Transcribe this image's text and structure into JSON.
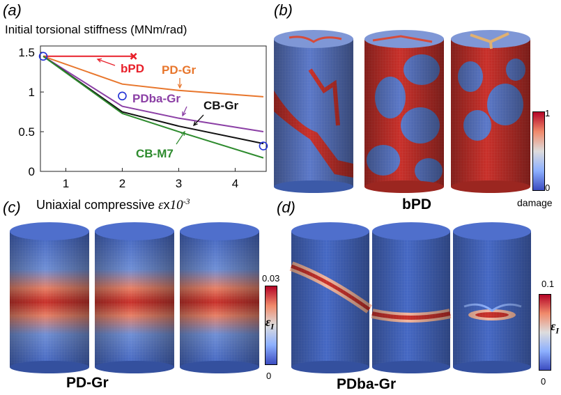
{
  "panels": {
    "a": {
      "label": "(a)"
    },
    "b": {
      "label": "(b)",
      "caption": "bPD",
      "colorbar": {
        "max": "1",
        "min": "0",
        "title": "damage"
      }
    },
    "c": {
      "label": "(c)",
      "caption": "PD-Gr",
      "colorbar": {
        "max": "0.03",
        "min": "0",
        "title": "ε",
        "subscript": "I"
      }
    },
    "d": {
      "label": "(d)",
      "caption": "PDba-Gr",
      "colorbar": {
        "max": "0.1",
        "min": "0",
        "title": "ε",
        "subscript": "I"
      }
    }
  },
  "chart_data": {
    "type": "line",
    "ylabel": "Initial torsional stiffness (MNm/rad)",
    "xlabel": "Uniaxial compressive ",
    "xlabel_symbol": "ε",
    "xlabel_suffix": "x",
    "xlabel_exp": "10",
    "xlabel_exp_power": "-3",
    "xlim": [
      0.55,
      4.55
    ],
    "ylim": [
      0,
      1.58
    ],
    "xticks": [
      "1",
      "2",
      "3",
      "4"
    ],
    "yticks": [
      "0",
      "0.5",
      "1",
      "1.5"
    ],
    "xtick_values": [
      1,
      2,
      3,
      4
    ],
    "ytick_values": [
      0,
      0.5,
      1,
      1.5
    ],
    "series": [
      {
        "name": "bPD",
        "color": "#e8202a",
        "x": [
          0.6,
          2.2
        ],
        "y": [
          1.45,
          1.45
        ],
        "end_marker": "x"
      },
      {
        "name": "PD-Gr",
        "color": "#e8762c",
        "x": [
          0.6,
          2.0,
          3.0,
          4.5
        ],
        "y": [
          1.45,
          1.1,
          1.02,
          0.94
        ]
      },
      {
        "name": "PDba-Gr",
        "color": "#8b3fa5",
        "x": [
          0.6,
          2.0,
          3.0,
          4.5
        ],
        "y": [
          1.45,
          0.82,
          0.67,
          0.5
        ]
      },
      {
        "name": "CB-Gr",
        "color": "#111111",
        "x": [
          0.6,
          2.0,
          3.0,
          4.5
        ],
        "y": [
          1.45,
          0.75,
          0.57,
          0.35
        ]
      },
      {
        "name": "CB-M7",
        "color": "#2e8b2e",
        "x": [
          0.6,
          2.0,
          3.0,
          4.5
        ],
        "y": [
          1.45,
          0.73,
          0.5,
          0.17
        ]
      }
    ],
    "highlighted_points": [
      {
        "x": 0.6,
        "y": 1.45
      },
      {
        "x": 2.0,
        "y": 0.95
      },
      {
        "x": 4.5,
        "y": 0.32
      }
    ],
    "annotations": [
      {
        "text": "bPD",
        "color": "#e8202a"
      },
      {
        "text": "PD-Gr",
        "color": "#e8762c"
      },
      {
        "text": "PDba-Gr",
        "color": "#8b3fa5"
      },
      {
        "text": "CB-Gr",
        "color": "#111111"
      },
      {
        "text": "CB-M7",
        "color": "#2e8b2e"
      }
    ]
  }
}
